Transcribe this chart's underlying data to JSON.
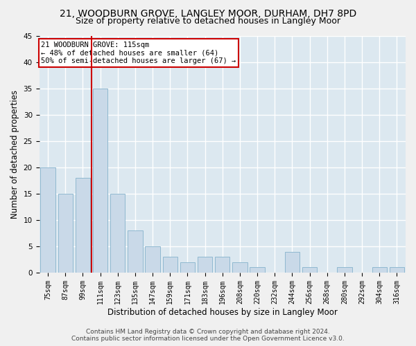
{
  "title": "21, WOODBURN GROVE, LANGLEY MOOR, DURHAM, DH7 8PD",
  "subtitle": "Size of property relative to detached houses in Langley Moor",
  "xlabel": "Distribution of detached houses by size in Langley Moor",
  "ylabel": "Number of detached properties",
  "categories": [
    "75sqm",
    "87sqm",
    "99sqm",
    "111sqm",
    "123sqm",
    "135sqm",
    "147sqm",
    "159sqm",
    "171sqm",
    "183sqm",
    "196sqm",
    "208sqm",
    "220sqm",
    "232sqm",
    "244sqm",
    "256sqm",
    "268sqm",
    "280sqm",
    "292sqm",
    "304sqm",
    "316sqm"
  ],
  "values": [
    20,
    15,
    18,
    35,
    15,
    8,
    5,
    3,
    2,
    3,
    3,
    2,
    1,
    0,
    4,
    1,
    0,
    1,
    0,
    1,
    1
  ],
  "bar_color": "#c9d9e8",
  "bar_edge_color": "#8fb8d0",
  "highlight_index": 3,
  "highlight_line_color": "#cc0000",
  "ylim": [
    0,
    45
  ],
  "yticks": [
    0,
    5,
    10,
    15,
    20,
    25,
    30,
    35,
    40,
    45
  ],
  "annotation_text": "21 WOODBURN GROVE: 115sqm\n← 48% of detached houses are smaller (64)\n50% of semi-detached houses are larger (67) →",
  "annotation_box_color": "#ffffff",
  "annotation_box_edge": "#cc0000",
  "footer_line1": "Contains HM Land Registry data © Crown copyright and database right 2024.",
  "footer_line2": "Contains public sector information licensed under the Open Government Licence v3.0.",
  "bg_color": "#dce8f0",
  "fig_bg_color": "#f0f0f0",
  "grid_color": "#ffffff",
  "title_fontsize": 10,
  "subtitle_fontsize": 9,
  "tick_fontsize": 7,
  "ylabel_fontsize": 8.5,
  "xlabel_fontsize": 8.5,
  "footer_fontsize": 6.5,
  "annotation_fontsize": 7.5
}
